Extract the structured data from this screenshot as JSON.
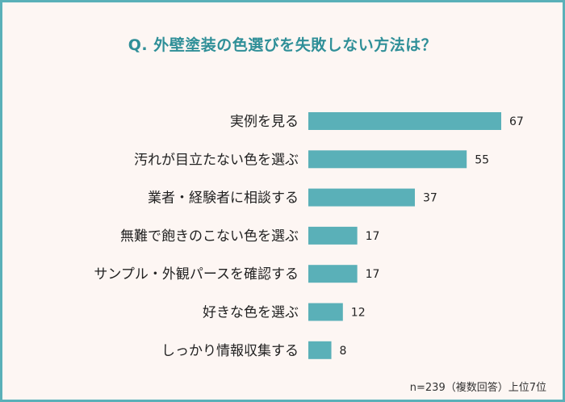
{
  "title": "Q. 外壁塗装の色選びを失敗しない方法は？",
  "note": "n=239（複数回答）上位7位",
  "colors": {
    "bar": "#5ab0b8",
    "border": "#5ab0b8",
    "title": "#2f8f98",
    "background": "#fdf6f3"
  },
  "chart_data": {
    "type": "bar",
    "orientation": "horizontal",
    "title": "Q. 外壁塗装の色選びを失敗しない方法は？",
    "categories": [
      "実例を見る",
      "汚れが目立たない色を選ぶ",
      "業者・経験者に相談する",
      "無難で飽きのこない色を選ぶ",
      "サンプル・外観パースを確認する",
      "好きな色を選ぶ",
      "しっかり情報収集する"
    ],
    "values": [
      67,
      55,
      37,
      17,
      17,
      12,
      8
    ],
    "xlim": [
      0,
      67
    ],
    "grid": false,
    "legend": "none"
  }
}
